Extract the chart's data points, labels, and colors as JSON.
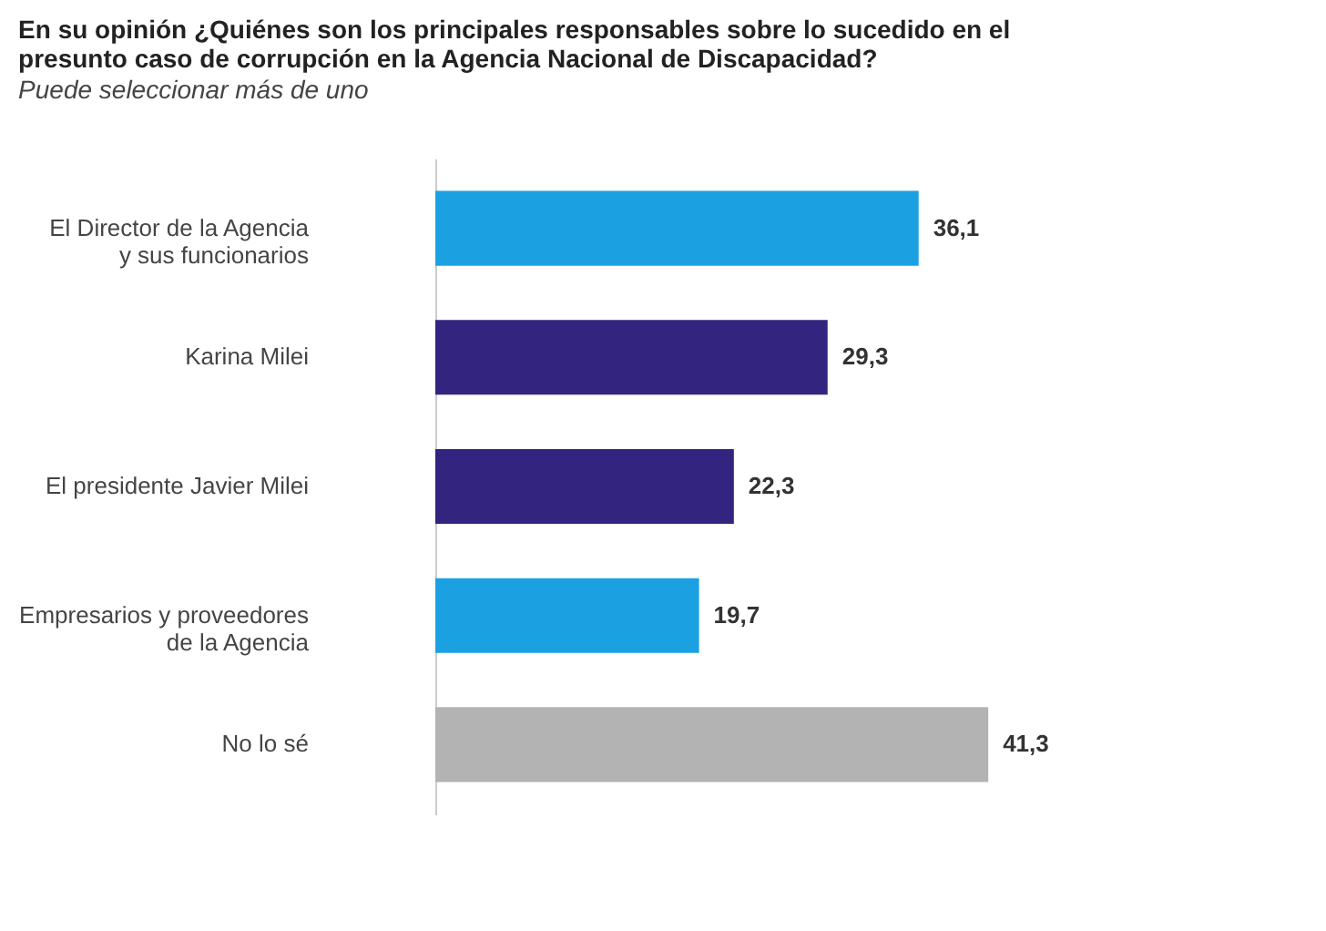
{
  "chart_data": {
    "type": "bar",
    "orientation": "horizontal",
    "title": "En su opinión ¿Quiénes son los principales responsables sobre lo sucedido en el presunto caso de corrupción en la Agencia Nacional de Discapacidad?",
    "subtitle": "Puede seleccionar más de uno",
    "categories": [
      "El Director de la Agencia y sus funcionarios",
      "Karina Milei",
      "El presidente Javier Milei",
      "Empresarios y proveedores de la Agencia",
      "No lo sé"
    ],
    "values": [
      36.1,
      29.3,
      22.3,
      19.7,
      41.3
    ],
    "colors": [
      "#1ba1e2",
      "#33247f",
      "#33247f",
      "#1ba1e2",
      "#b3b3b3"
    ],
    "value_labels": [
      "36,1",
      "29,3",
      "22,3",
      "19,7",
      "41,3"
    ]
  }
}
